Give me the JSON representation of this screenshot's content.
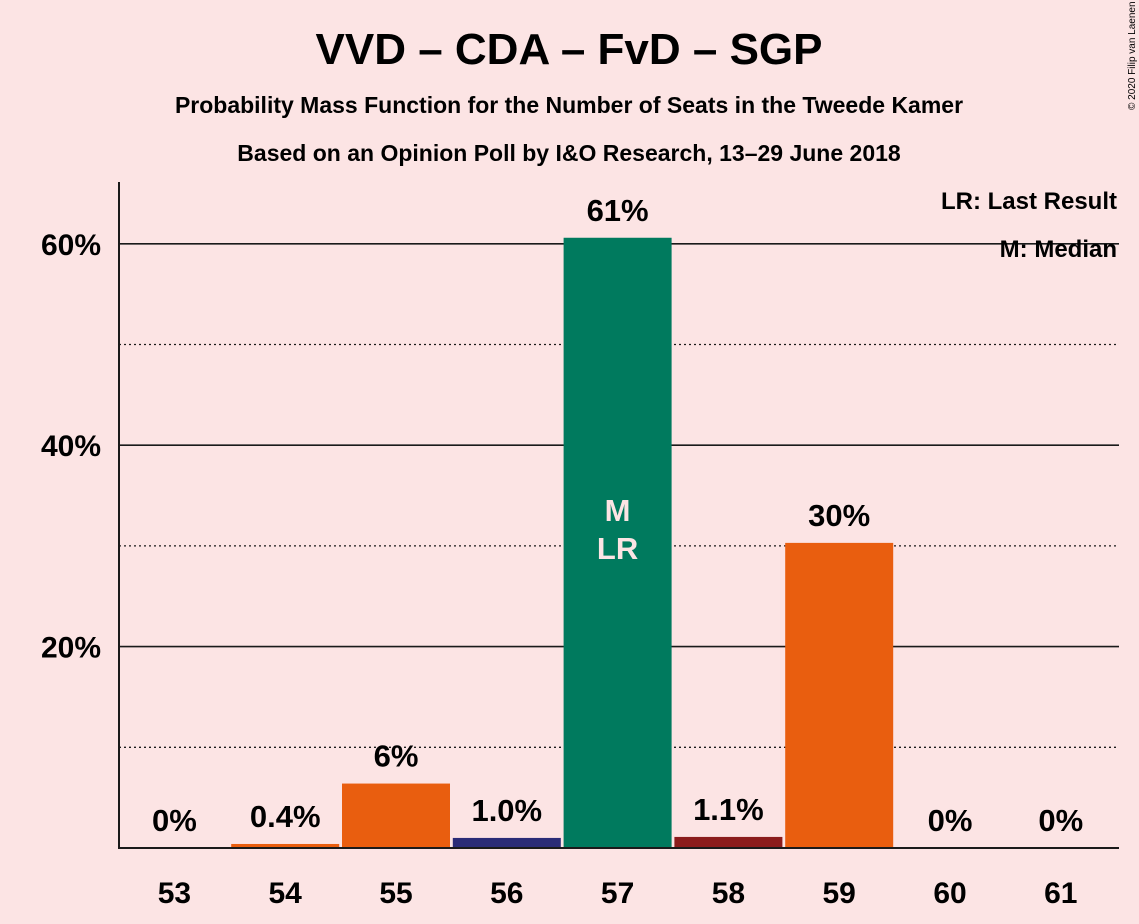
{
  "chart_data": {
    "type": "bar",
    "title": "VVD – CDA – FvD – SGP",
    "subtitle_1": "Probability Mass Function for the Number of Seats in the Tweede Kamer",
    "subtitle_2": "Based on an Opinion Poll by I&O Research, 13–29 June 2018",
    "xlabel": "",
    "ylabel": "",
    "ylim": [
      0,
      66
    ],
    "yticks": [
      {
        "value": 20,
        "label": "20%"
      },
      {
        "value": 40,
        "label": "40%"
      },
      {
        "value": 60,
        "label": "60%"
      }
    ],
    "minor_gridlines": [
      10,
      30,
      50
    ],
    "categories": [
      "53",
      "54",
      "55",
      "56",
      "57",
      "58",
      "59",
      "60",
      "61"
    ],
    "values": [
      0,
      0.4,
      6.4,
      1.0,
      60.6,
      1.1,
      30.3,
      0,
      0
    ],
    "labels": [
      "0%",
      "0.4%",
      "6%",
      "1.0%",
      "61%",
      "1.1%",
      "30%",
      "0%",
      "0%"
    ],
    "colors": [
      "#E95E0F",
      "#E95E0F",
      "#E95E0F",
      "#2B2C77",
      "#007A5E",
      "#8B1C1C",
      "#E95E0F",
      "#E95E0F",
      "#E95E0F"
    ],
    "inside_labels": {
      "57": [
        "M",
        "LR"
      ]
    },
    "legend": [
      "LR: Last Result",
      "M: Median"
    ],
    "legend_position": "top-right",
    "copyright": "© 2020 Filip van Laenen"
  }
}
